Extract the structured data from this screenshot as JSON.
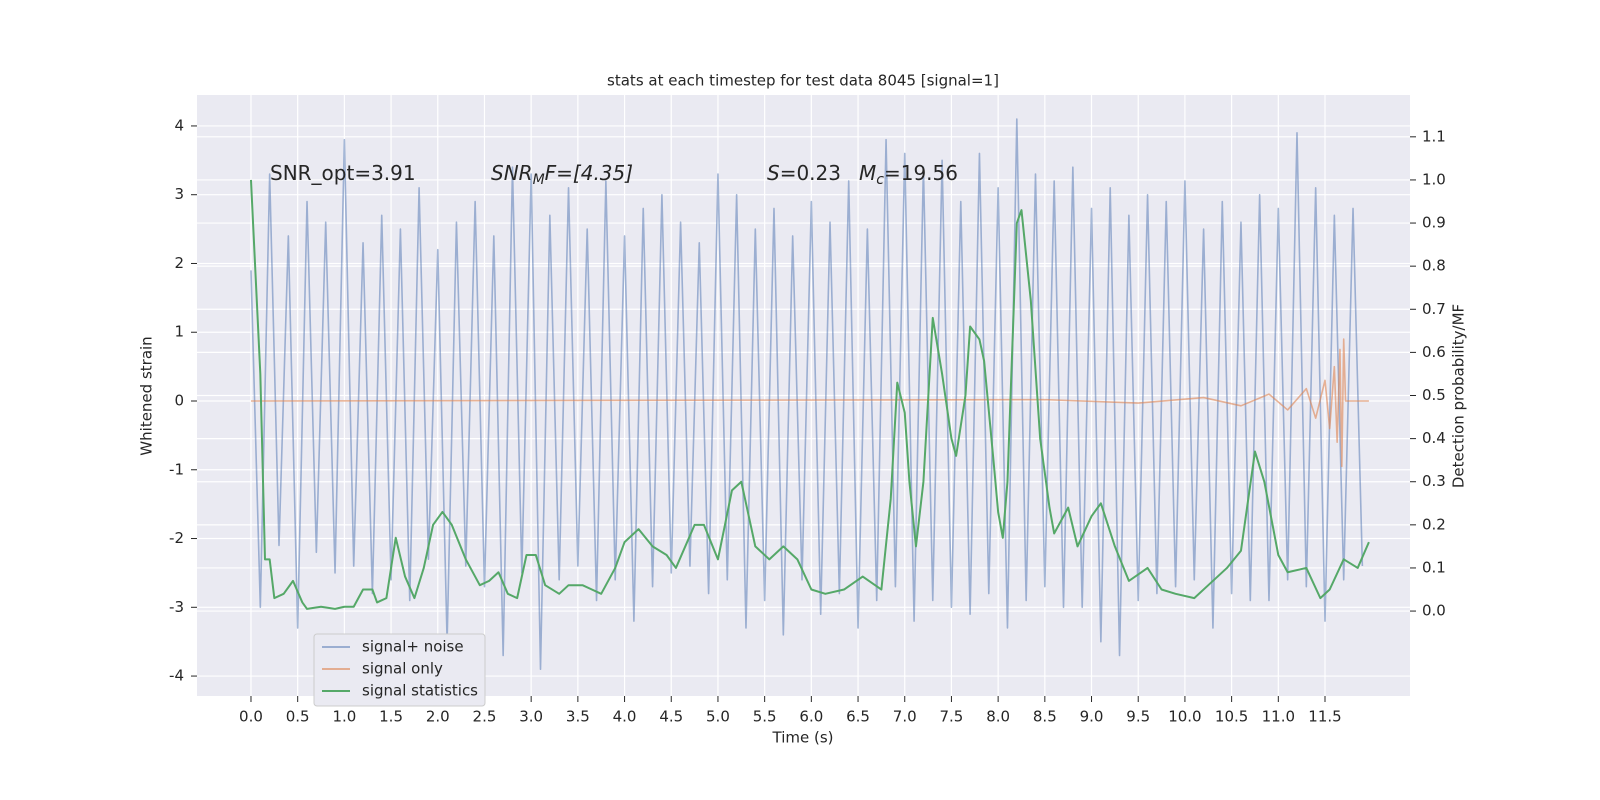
{
  "chart_data": {
    "type": "line",
    "title": "stats at each timestep for test data 8045 [signal=1]",
    "xlabel": "Time (s)",
    "ylabel": "Whitened strain",
    "y2label": "Detection probability/MF",
    "annotations": [
      [
        "SNR_opt=3.91"
      ],
      [
        "SNR",
        "M",
        "F=[4.35]"
      ],
      [
        "S",
        "=0.23"
      ],
      [
        "M",
        "c",
        "=19.56"
      ]
    ],
    "xlim": [
      -0.578,
      12.41
    ],
    "ylim": [
      -4.29,
      4.45
    ],
    "y2lim": [
      -0.197,
      1.197
    ],
    "xticks": [
      {
        "value": 0,
        "label": "0.0"
      },
      0.5,
      {
        "value": 1,
        "label": "1.0"
      },
      1.5,
      {
        "value": 2,
        "label": "2.0"
      },
      2.5,
      {
        "value": 3,
        "label": "3.0"
      },
      3.5,
      {
        "value": 4,
        "label": "4.0"
      },
      4.5,
      {
        "value": 5,
        "label": "5.0"
      },
      5.5,
      {
        "value": 6,
        "label": "6.0"
      },
      6.5,
      {
        "value": 7,
        "label": "7.0"
      },
      7.5,
      {
        "value": 8,
        "label": "8.0"
      },
      8.5,
      {
        "value": 9,
        "label": "9.0"
      },
      9.5,
      {
        "value": 10,
        "label": "10.0"
      },
      10.5,
      {
        "value": 11,
        "label": "11.0"
      },
      11.5
    ],
    "yticks": [
      -4,
      -3,
      -2,
      -1,
      0,
      1,
      2,
      3,
      4
    ],
    "y2ticks": [
      {
        "value": 0,
        "label": "0.0"
      },
      0.1,
      0.2,
      0.3,
      0.4,
      0.5,
      0.6,
      0.7,
      0.8,
      0.9,
      {
        "value": 1,
        "label": "1.0"
      },
      1.1
    ],
    "grid": true,
    "legend": "lower left",
    "series": [
      {
        "name": "signal+ noise",
        "color": "#4c72b0",
        "alpha": 0.5,
        "x": [
          0.0,
          0.1,
          0.2,
          0.3,
          0.4,
          0.5,
          0.6,
          0.7,
          0.8,
          0.9,
          1.0,
          1.1,
          1.2,
          1.3,
          1.4,
          1.5,
          1.6,
          1.7,
          1.8,
          1.9,
          2.0,
          2.1,
          2.2,
          2.3,
          2.4,
          2.5,
          2.6,
          2.7,
          2.8,
          2.9,
          3.0,
          3.1,
          3.2,
          3.3,
          3.4,
          3.5,
          3.6,
          3.7,
          3.8,
          3.9,
          4.0,
          4.1,
          4.2,
          4.3,
          4.4,
          4.5,
          4.6,
          4.7,
          4.8,
          4.9,
          5.0,
          5.1,
          5.2,
          5.3,
          5.4,
          5.5,
          5.6,
          5.7,
          5.8,
          5.9,
          6.0,
          6.1,
          6.2,
          6.3,
          6.4,
          6.5,
          6.6,
          6.7,
          6.8,
          6.9,
          7.0,
          7.1,
          7.2,
          7.3,
          7.4,
          7.5,
          7.6,
          7.7,
          7.8,
          7.9,
          8.0,
          8.1,
          8.2,
          8.3,
          8.4,
          8.5,
          8.6,
          8.7,
          8.8,
          8.9,
          9.0,
          9.1,
          9.2,
          9.3,
          9.4,
          9.5,
          9.6,
          9.7,
          9.8,
          9.9,
          10.0,
          10.1,
          10.2,
          10.3,
          10.4,
          10.5,
          10.6,
          10.7,
          10.8,
          10.9,
          11.0,
          11.1,
          11.2,
          11.3,
          11.4,
          11.5,
          11.6,
          11.7,
          11.8,
          11.9
        ],
        "values": [
          1.9,
          -3.0,
          3.3,
          -2.1,
          2.4,
          -3.3,
          2.9,
          -2.2,
          2.6,
          -2.5,
          3.8,
          -2.4,
          2.3,
          -2.8,
          2.7,
          -2.6,
          2.5,
          -2.9,
          3.1,
          -2.3,
          2.2,
          -3.5,
          2.6,
          -2.4,
          2.9,
          -2.7,
          2.4,
          -3.7,
          3.4,
          -2.5,
          3.3,
          -3.9,
          2.7,
          -2.6,
          3.1,
          -2.4,
          2.5,
          -2.9,
          3.2,
          -2.6,
          2.4,
          -3.2,
          2.8,
          -2.7,
          3.0,
          -2.5,
          2.6,
          -2.4,
          2.3,
          -2.8,
          3.3,
          -2.6,
          3.0,
          -3.3,
          2.5,
          -2.9,
          2.8,
          -3.4,
          2.4,
          -2.6,
          2.9,
          -3.1,
          2.6,
          -2.8,
          3.2,
          -3.3,
          2.5,
          -2.9,
          3.8,
          -2.7,
          3.6,
          -3.2,
          3.4,
          -2.9,
          3.5,
          -3.0,
          2.9,
          -3.1,
          3.6,
          -2.8,
          3.1,
          -3.3,
          4.1,
          -2.9,
          3.3,
          -2.7,
          3.2,
          -3.0,
          3.4,
          -3.0,
          2.8,
          -3.5,
          3.1,
          -3.7,
          2.7,
          -2.9,
          3.0,
          -2.8,
          2.9,
          -2.7,
          3.2,
          -2.6,
          2.5,
          -3.3,
          2.9,
          -2.8,
          2.6,
          -2.9,
          3.0,
          -2.9,
          2.8,
          -2.6,
          3.9,
          -2.7,
          3.1,
          -3.2,
          2.7,
          -2.6,
          2.8,
          -2.4
        ]
      },
      {
        "name": "signal only",
        "color": "#dd8452",
        "alpha": 0.6,
        "x": [
          0.0,
          8.5,
          9.5,
          10.2,
          10.6,
          10.9,
          11.1,
          11.3,
          11.4,
          11.5,
          11.55,
          11.6,
          11.63,
          11.66,
          11.68,
          11.7,
          11.72,
          11.97
        ],
        "values": [
          0,
          0.02,
          -0.03,
          0.05,
          -0.07,
          0.1,
          -0.13,
          0.18,
          -0.25,
          0.3,
          -0.4,
          0.5,
          -0.6,
          0.75,
          -0.95,
          0.9,
          0,
          0
        ]
      },
      {
        "name": "signal statistics",
        "color": "#55a868",
        "alpha": 1,
        "axis": "y2",
        "x": [
          0.0,
          0.1,
          0.15,
          0.2,
          0.25,
          0.35,
          0.45,
          0.55,
          0.6,
          0.75,
          0.9,
          1.0,
          1.1,
          1.2,
          1.3,
          1.35,
          1.45,
          1.55,
          1.65,
          1.75,
          1.85,
          1.95,
          2.05,
          2.15,
          2.3,
          2.45,
          2.55,
          2.65,
          2.75,
          2.85,
          2.95,
          3.05,
          3.15,
          3.3,
          3.4,
          3.55,
          3.65,
          3.75,
          3.9,
          4.0,
          4.15,
          4.3,
          4.45,
          4.55,
          4.75,
          4.85,
          5.0,
          5.15,
          5.25,
          5.4,
          5.55,
          5.7,
          5.85,
          6.0,
          6.15,
          6.35,
          6.55,
          6.75,
          6.85,
          6.92,
          7.0,
          7.05,
          7.12,
          7.2,
          7.3,
          7.4,
          7.5,
          7.55,
          7.65,
          7.7,
          7.8,
          7.85,
          7.95,
          8.0,
          8.05,
          8.1,
          8.2,
          8.25,
          8.35,
          8.45,
          8.55,
          8.6,
          8.75,
          8.85,
          9.0,
          9.1,
          9.25,
          9.4,
          9.6,
          9.75,
          9.9,
          10.1,
          10.25,
          10.45,
          10.6,
          10.75,
          10.85,
          11.0,
          11.1,
          11.3,
          11.45,
          11.55,
          11.7,
          11.85,
          11.97
        ],
        "values": [
          1.0,
          0.55,
          0.12,
          0.12,
          0.03,
          0.04,
          0.07,
          0.02,
          0.005,
          0.01,
          0.005,
          0.01,
          0.01,
          0.05,
          0.05,
          0.02,
          0.03,
          0.17,
          0.08,
          0.03,
          0.1,
          0.2,
          0.23,
          0.2,
          0.12,
          0.06,
          0.07,
          0.09,
          0.04,
          0.03,
          0.13,
          0.13,
          0.06,
          0.04,
          0.06,
          0.06,
          0.05,
          0.04,
          0.1,
          0.16,
          0.19,
          0.15,
          0.13,
          0.1,
          0.2,
          0.2,
          0.12,
          0.28,
          0.3,
          0.15,
          0.12,
          0.15,
          0.12,
          0.05,
          0.04,
          0.05,
          0.08,
          0.05,
          0.26,
          0.53,
          0.46,
          0.3,
          0.15,
          0.3,
          0.68,
          0.55,
          0.4,
          0.36,
          0.5,
          0.66,
          0.63,
          0.58,
          0.35,
          0.23,
          0.17,
          0.3,
          0.9,
          0.93,
          0.72,
          0.4,
          0.24,
          0.18,
          0.24,
          0.15,
          0.22,
          0.25,
          0.15,
          0.07,
          0.1,
          0.05,
          0.04,
          0.03,
          0.06,
          0.1,
          0.14,
          0.37,
          0.3,
          0.13,
          0.09,
          0.1,
          0.03,
          0.05,
          0.12,
          0.1,
          0.16
        ]
      }
    ]
  }
}
